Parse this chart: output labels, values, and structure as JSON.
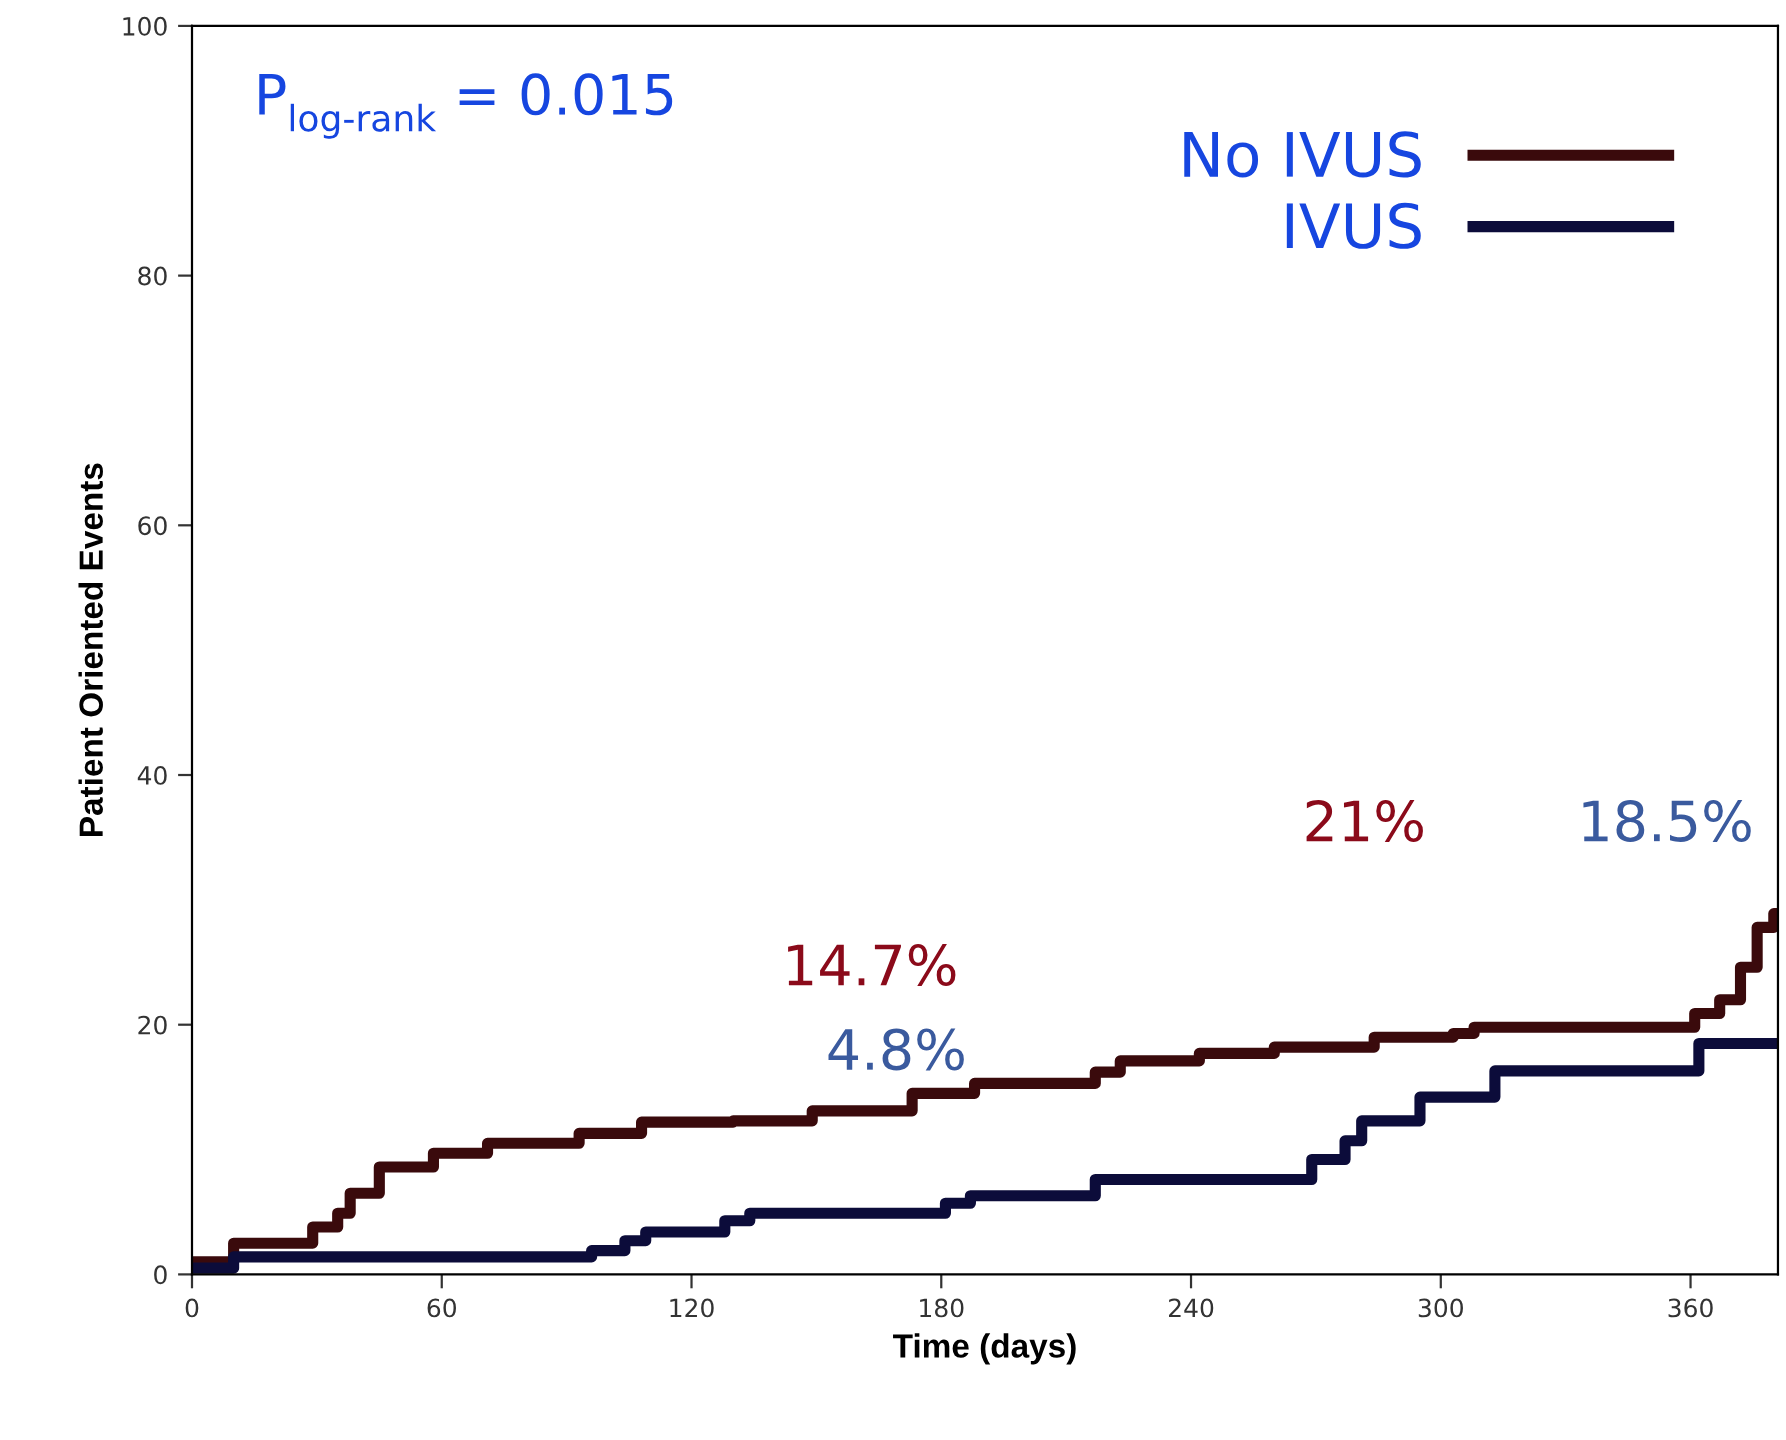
{
  "chart_data": {
    "type": "step",
    "xlabel": "Time (days)",
    "ylabel": "Patient Oriented Events",
    "xlim": [
      0,
      381
    ],
    "ylim": [
      0,
      100
    ],
    "xticks": [
      0,
      60,
      120,
      180,
      240,
      300,
      360
    ],
    "yticks": [
      0,
      20,
      40,
      60,
      80,
      100
    ],
    "grid": false,
    "legend": "top right",
    "line_style": "solid",
    "annotations": [
      "P$_{log-rank}$ = 0.015",
      "14.7%",
      "4.8%",
      "21%",
      "18.5%"
    ],
    "series": [
      {
        "name": "No IVUS",
        "color": "#3a0a0c",
        "x": [
          0,
          10,
          29,
          35,
          38,
          45,
          58,
          71,
          93,
          108,
          130,
          149,
          173,
          188,
          217,
          223,
          242,
          260,
          284,
          303,
          308,
          356,
          361,
          367,
          372,
          376,
          380,
          381
        ],
        "values": [
          1.0,
          2.5,
          3.8,
          4.9,
          6.5,
          8.6,
          9.7,
          10.5,
          11.3,
          12.2,
          12.3,
          13.1,
          14.5,
          15.3,
          16.2,
          17.1,
          17.7,
          18.2,
          19.0,
          19.3,
          19.8,
          19.8,
          20.9,
          22.0,
          24.6,
          27.8,
          28.9,
          28.9
        ]
      },
      {
        "name": "IVUS",
        "color": "#0c0c3a",
        "x": [
          0,
          10,
          96,
          104,
          109,
          128,
          134,
          181,
          187,
          217,
          269,
          277,
          281,
          295,
          313,
          362,
          381
        ],
        "values": [
          0.5,
          1.4,
          1.9,
          2.7,
          3.4,
          4.3,
          4.9,
          5.7,
          6.3,
          7.6,
          9.2,
          10.7,
          12.3,
          14.2,
          16.3,
          18.5,
          18.5
        ]
      }
    ]
  }
}
